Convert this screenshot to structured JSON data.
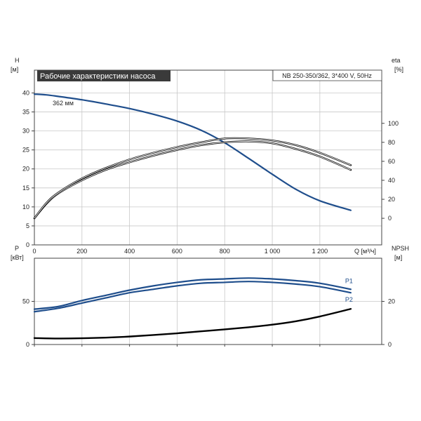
{
  "chart_data": [
    {
      "type": "line",
      "title": "Рабочие характеристики насоса",
      "subtitle": "NB 250-350/362, 3*400 V, 50Hz",
      "x_axis": {
        "label": "Q [м³/ч]",
        "range": [
          0,
          1460
        ],
        "ticks": [
          0,
          200,
          400,
          600,
          800,
          1000,
          1200
        ],
        "tick_labels": [
          "0",
          "200",
          "400",
          "600",
          "800",
          "1 000",
          "1 200"
        ]
      },
      "y_axis_left": {
        "label_top": "H",
        "label_unit": "[м]",
        "range": [
          0,
          46
        ],
        "ticks": [
          0,
          5,
          10,
          15,
          20,
          25,
          30,
          35,
          40
        ],
        "tick_labels": [
          "0",
          "5",
          "10",
          "15",
          "20",
          "25",
          "30",
          "35",
          "40"
        ]
      },
      "y_axis_right": {
        "label_top": "eta",
        "label_unit": "[%]",
        "range": [
          -28,
          156
        ],
        "ticks": [
          0,
          20,
          40,
          60,
          80,
          100
        ],
        "tick_labels": [
          "0",
          "20",
          "40",
          "60",
          "80",
          "100"
        ]
      },
      "grid": true,
      "annotations": [
        {
          "text": "362 мм"
        }
      ],
      "series": [
        {
          "axis": "left",
          "color": "#1f4e8c",
          "x": [
            0,
            50,
            100,
            200,
            300,
            400,
            500,
            600,
            700,
            800,
            900,
            1000,
            1100,
            1200,
            1330
          ],
          "y": [
            39.7,
            39.5,
            39.1,
            38.2,
            37.1,
            35.9,
            34.4,
            32.6,
            30.2,
            26.9,
            22.8,
            18.6,
            14.6,
            11.6,
            9.1
          ]
        },
        {
          "axis": "right",
          "color": "#000000",
          "x": [
            0,
            50,
            100,
            200,
            300,
            400,
            500,
            600,
            700,
            800,
            900,
            1000,
            1100,
            1200,
            1330
          ],
          "y": [
            0,
            15,
            26,
            40,
            51,
            59,
            66,
            72,
            77,
            80,
            81,
            79,
            73,
            65,
            51
          ]
        },
        {
          "axis": "right",
          "color": "#000000",
          "x": [
            0,
            50,
            100,
            200,
            300,
            400,
            500,
            600,
            700,
            800,
            900,
            1000,
            1100,
            1200,
            1330
          ],
          "y": [
            0,
            16,
            27,
            42,
            53,
            62,
            69,
            75,
            80,
            84,
            84,
            82,
            77,
            69,
            56
          ]
        }
      ]
    },
    {
      "type": "line",
      "x_axis": {
        "range": [
          0,
          1460
        ]
      },
      "y_axis_left": {
        "label_top": "P",
        "label_unit": "[кВт]",
        "range": [
          0,
          100
        ],
        "ticks": [
          0,
          50
        ],
        "tick_labels": [
          "0",
          "50"
        ]
      },
      "y_axis_right": {
        "label_top": "NPSH",
        "label_unit": "[м]",
        "range": [
          0,
          40
        ],
        "ticks": [
          0,
          20
        ],
        "tick_labels": [
          "0",
          "20"
        ]
      },
      "grid": true,
      "series": [
        {
          "name": "P1",
          "axis": "left",
          "color": "#1f4e8c",
          "x": [
            0,
            100,
            200,
            300,
            400,
            500,
            600,
            700,
            800,
            900,
            1000,
            1100,
            1200,
            1330
          ],
          "y": [
            41,
            44,
            51,
            57,
            63,
            68,
            72,
            75,
            76,
            77,
            76,
            74,
            71,
            64
          ]
        },
        {
          "name": "P2",
          "axis": "left",
          "color": "#1f4e8c",
          "x": [
            0,
            100,
            200,
            300,
            400,
            500,
            600,
            700,
            800,
            900,
            1000,
            1100,
            1200,
            1330
          ],
          "y": [
            38,
            42,
            48,
            54,
            60,
            64,
            68,
            71,
            72,
            73,
            72,
            70,
            67,
            60
          ]
        },
        {
          "axis": "right",
          "color": "#000000",
          "x": [
            0,
            100,
            200,
            300,
            400,
            500,
            600,
            700,
            800,
            900,
            1000,
            1100,
            1200,
            1330
          ],
          "y": [
            3,
            2.8,
            2.9,
            3.2,
            3.7,
            4.4,
            5.2,
            6.1,
            7.0,
            8.0,
            9.2,
            10.8,
            13.0,
            16.5
          ]
        }
      ]
    }
  ]
}
